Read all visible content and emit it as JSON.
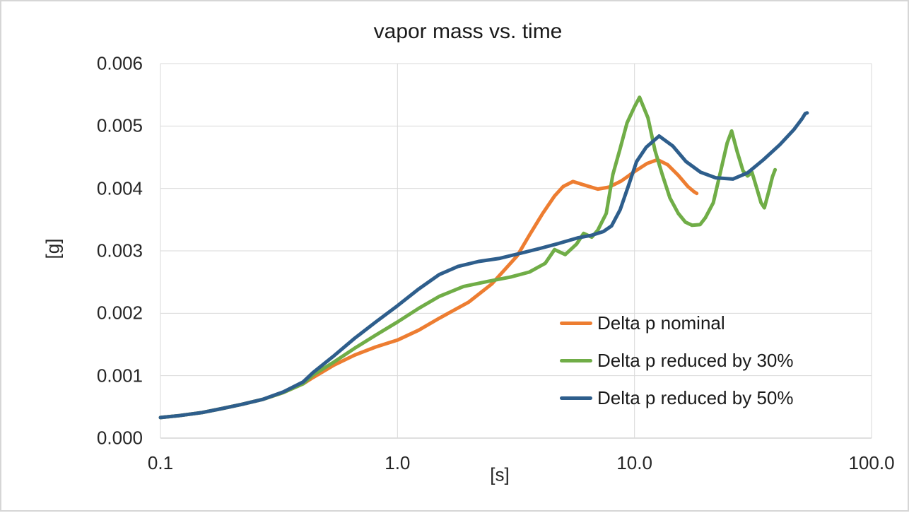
{
  "chart_data": {
    "type": "line",
    "title": "vapor mass vs. time",
    "xlabel": "[s]",
    "ylabel": "[g]",
    "x_scale": "log",
    "xlim": [
      0.1,
      100
    ],
    "ylim": [
      0,
      0.006
    ],
    "grid": true,
    "legend_position": "inside-right-lower",
    "colors": {
      "gridline": "#d9d9d9",
      "axis_line": "#bfbfbf",
      "text": "#262626"
    },
    "x_ticks": [
      {
        "value": 0.1,
        "label": "0.1"
      },
      {
        "value": 1.0,
        "label": "1.0"
      },
      {
        "value": 10.0,
        "label": "10.0"
      },
      {
        "value": 100.0,
        "label": "100.0"
      }
    ],
    "y_ticks": [
      {
        "value": 0.0,
        "label": "0.000"
      },
      {
        "value": 0.001,
        "label": "0.001"
      },
      {
        "value": 0.002,
        "label": "0.002"
      },
      {
        "value": 0.003,
        "label": "0.003"
      },
      {
        "value": 0.004,
        "label": "0.004"
      },
      {
        "value": 0.005,
        "label": "0.005"
      },
      {
        "value": 0.006,
        "label": "0.006"
      }
    ],
    "series": [
      {
        "name": "Delta p nominal",
        "color": "#ED7D31",
        "points": [
          [
            0.1,
            0.00033
          ],
          [
            0.12,
            0.00036
          ],
          [
            0.15,
            0.00041
          ],
          [
            0.18,
            0.00047
          ],
          [
            0.22,
            0.00054
          ],
          [
            0.27,
            0.00062
          ],
          [
            0.33,
            0.00073
          ],
          [
            0.4,
            0.00087
          ],
          [
            0.44,
            0.00097
          ],
          [
            0.54,
            0.00117
          ],
          [
            0.66,
            0.00133
          ],
          [
            0.81,
            0.00146
          ],
          [
            1.0,
            0.00157
          ],
          [
            1.23,
            0.00173
          ],
          [
            1.5,
            0.00192
          ],
          [
            2.0,
            0.00218
          ],
          [
            2.5,
            0.00247
          ],
          [
            3.2,
            0.00292
          ],
          [
            3.6,
            0.00325
          ],
          [
            4.1,
            0.0036
          ],
          [
            4.6,
            0.00388
          ],
          [
            5.0,
            0.00403
          ],
          [
            5.5,
            0.00411
          ],
          [
            6.2,
            0.00405
          ],
          [
            7.0,
            0.00399
          ],
          [
            7.8,
            0.00402
          ],
          [
            8.8,
            0.00412
          ],
          [
            10.0,
            0.00427
          ],
          [
            11.3,
            0.0044
          ],
          [
            12.5,
            0.00446
          ],
          [
            13.8,
            0.00438
          ],
          [
            15.3,
            0.00421
          ],
          [
            16.8,
            0.00403
          ],
          [
            17.8,
            0.00395
          ],
          [
            18.3,
            0.00392
          ]
        ]
      },
      {
        "name": "Delta p reduced by 30%",
        "color": "#70AD47",
        "points": [
          [
            0.1,
            0.00033
          ],
          [
            0.12,
            0.00036
          ],
          [
            0.15,
            0.00041
          ],
          [
            0.18,
            0.00047
          ],
          [
            0.22,
            0.00054
          ],
          [
            0.27,
            0.00062
          ],
          [
            0.33,
            0.00073
          ],
          [
            0.4,
            0.00087
          ],
          [
            0.44,
            0.00101
          ],
          [
            0.54,
            0.00122
          ],
          [
            0.66,
            0.00144
          ],
          [
            0.81,
            0.00165
          ],
          [
            1.0,
            0.00186
          ],
          [
            1.23,
            0.00208
          ],
          [
            1.5,
            0.00227
          ],
          [
            1.9,
            0.00243
          ],
          [
            2.4,
            0.00251
          ],
          [
            3.0,
            0.00258
          ],
          [
            3.6,
            0.00266
          ],
          [
            4.2,
            0.0028
          ],
          [
            4.6,
            0.00302
          ],
          [
            5.1,
            0.00294
          ],
          [
            5.7,
            0.00311
          ],
          [
            6.1,
            0.00328
          ],
          [
            6.6,
            0.00322
          ],
          [
            7.0,
            0.00333
          ],
          [
            7.6,
            0.0036
          ],
          [
            8.1,
            0.00422
          ],
          [
            8.7,
            0.00464
          ],
          [
            9.3,
            0.00505
          ],
          [
            10.0,
            0.00531
          ],
          [
            10.5,
            0.00546
          ],
          [
            11.4,
            0.00513
          ],
          [
            12.2,
            0.00461
          ],
          [
            13.1,
            0.00422
          ],
          [
            14.1,
            0.00385
          ],
          [
            15.3,
            0.0036
          ],
          [
            16.4,
            0.00346
          ],
          [
            17.5,
            0.00341
          ],
          [
            18.9,
            0.00342
          ],
          [
            19.9,
            0.00353
          ],
          [
            21.5,
            0.00377
          ],
          [
            23.1,
            0.00428
          ],
          [
            24.6,
            0.00473
          ],
          [
            25.7,
            0.00492
          ],
          [
            27.1,
            0.00459
          ],
          [
            28.7,
            0.00428
          ],
          [
            30.0,
            0.0042
          ],
          [
            31.3,
            0.00426
          ],
          [
            32.8,
            0.004
          ],
          [
            34.2,
            0.00377
          ],
          [
            35.3,
            0.00369
          ],
          [
            36.9,
            0.00396
          ],
          [
            38.2,
            0.00419
          ],
          [
            39.2,
            0.0043
          ]
        ]
      },
      {
        "name": "Delta p reduced by 50%",
        "color": "#2E5E8C",
        "points": [
          [
            0.1,
            0.00033
          ],
          [
            0.12,
            0.00036
          ],
          [
            0.15,
            0.00041
          ],
          [
            0.18,
            0.00047
          ],
          [
            0.22,
            0.00054
          ],
          [
            0.27,
            0.00062
          ],
          [
            0.33,
            0.00074
          ],
          [
            0.4,
            0.0009
          ],
          [
            0.44,
            0.00105
          ],
          [
            0.54,
            0.00132
          ],
          [
            0.66,
            0.0016
          ],
          [
            0.81,
            0.00186
          ],
          [
            1.0,
            0.00212
          ],
          [
            1.23,
            0.00239
          ],
          [
            1.5,
            0.00262
          ],
          [
            1.8,
            0.00275
          ],
          [
            2.2,
            0.00283
          ],
          [
            2.7,
            0.00288
          ],
          [
            3.3,
            0.00296
          ],
          [
            4.0,
            0.00304
          ],
          [
            4.8,
            0.00312
          ],
          [
            5.8,
            0.00321
          ],
          [
            6.6,
            0.00325
          ],
          [
            7.4,
            0.00331
          ],
          [
            8.0,
            0.0034
          ],
          [
            8.7,
            0.00366
          ],
          [
            9.4,
            0.00403
          ],
          [
            10.2,
            0.00443
          ],
          [
            11.2,
            0.00466
          ],
          [
            12.7,
            0.00484
          ],
          [
            14.5,
            0.00468
          ],
          [
            16.5,
            0.00443
          ],
          [
            19.0,
            0.00426
          ],
          [
            22.0,
            0.00417
          ],
          [
            26.0,
            0.00415
          ],
          [
            30.0,
            0.00425
          ],
          [
            35.0,
            0.00446
          ],
          [
            41.0,
            0.0047
          ],
          [
            47.0,
            0.00494
          ],
          [
            51.0,
            0.00512
          ],
          [
            52.5,
            0.0052
          ],
          [
            53.5,
            0.00521
          ]
        ]
      }
    ]
  }
}
